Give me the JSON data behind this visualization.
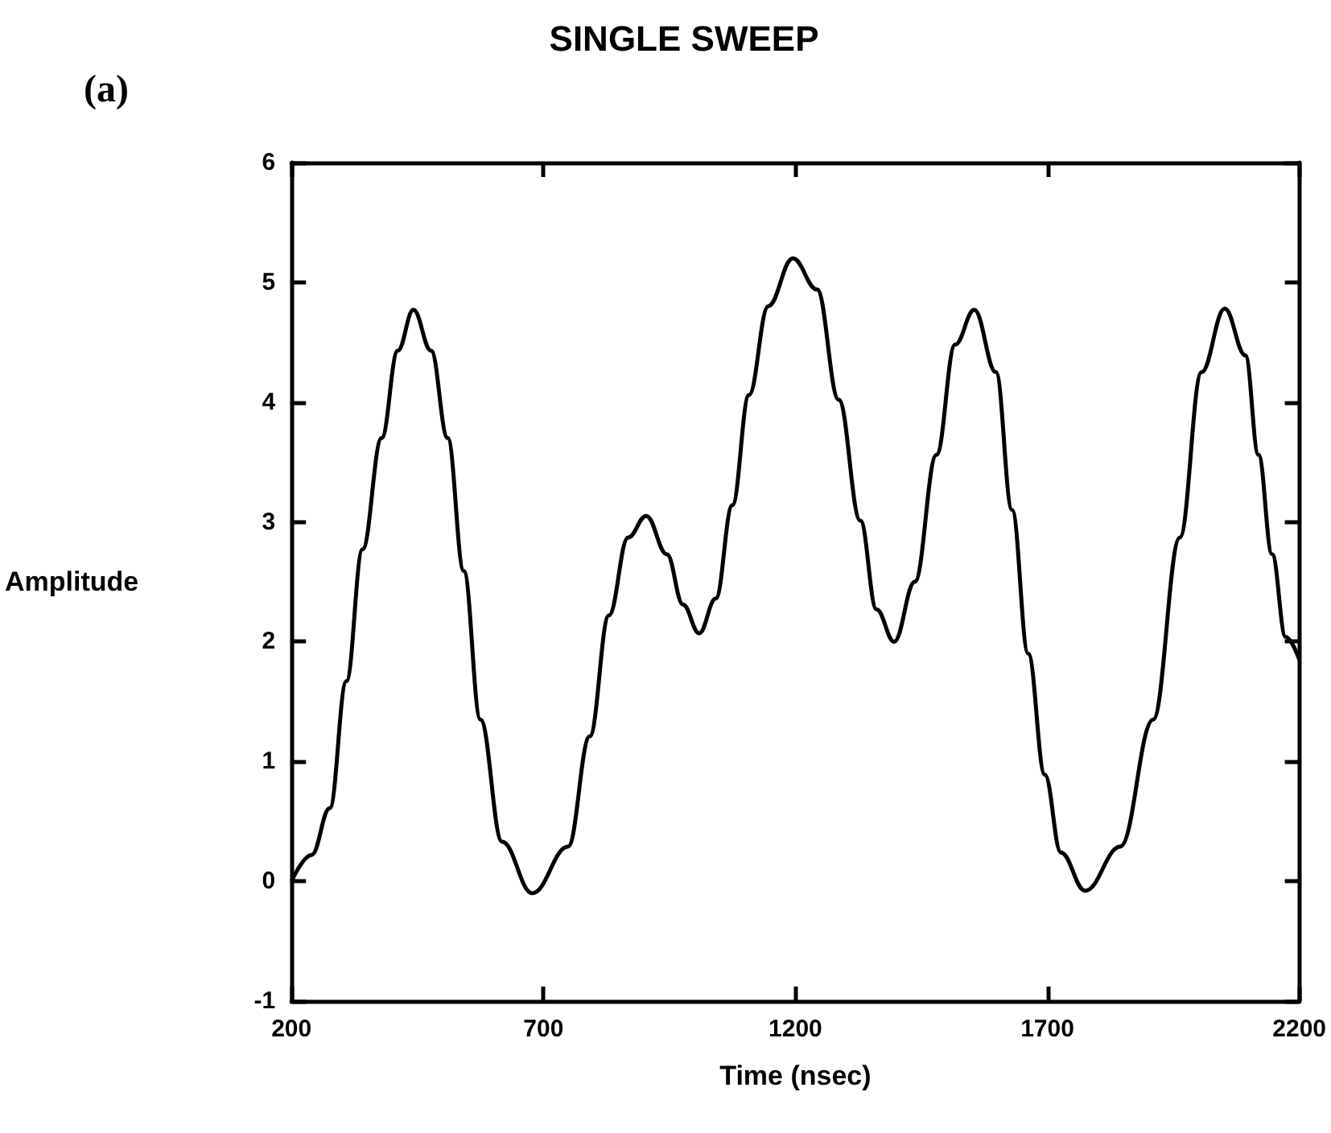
{
  "chart_data": {
    "type": "line",
    "title": "SINGLE SWEEP",
    "xlabel": "Time (nsec)",
    "ylabel": "Amplitude",
    "annotations": [
      "(a)"
    ],
    "x": [
      200,
      240,
      276,
      309,
      341,
      379,
      411,
      442,
      477,
      510,
      542,
      575,
      618,
      678,
      749,
      792,
      830,
      868,
      904,
      945,
      977,
      1009,
      1042,
      1075,
      1108,
      1146,
      1195,
      1243,
      1286,
      1329,
      1361,
      1396,
      1437,
      1480,
      1517,
      1555,
      1598,
      1630,
      1662,
      1695,
      1727,
      1775,
      1845,
      1910,
      1963,
      2006,
      2052,
      2093,
      2119,
      2146,
      2173,
      2200
    ],
    "series": [
      {
        "color": "#000000",
        "values": [
          0,
          0.22,
          0.61,
          1.67,
          2.77,
          3.7,
          4.43,
          4.77,
          4.43,
          3.7,
          2.59,
          1.35,
          0.33,
          -0.1,
          0.29,
          1.21,
          2.22,
          2.87,
          3.05,
          2.73,
          2.31,
          2.07,
          2.36,
          3.14,
          4.06,
          4.8,
          5.2,
          4.94,
          4.02,
          3.01,
          2.27,
          2.0,
          2.5,
          3.56,
          4.48,
          4.77,
          4.25,
          3.1,
          1.9,
          0.89,
          0.24,
          -0.08,
          0.29,
          1.35,
          2.87,
          4.25,
          4.78,
          4.39,
          3.56,
          2.73,
          2.04,
          1.85
        ]
      }
    ],
    "xlim": [
      200,
      2200
    ],
    "xticks": [
      200,
      700,
      1200,
      1700,
      2200
    ],
    "ylim": [
      -1,
      6
    ],
    "yticks": [
      -1,
      0,
      1,
      2,
      3,
      4,
      5,
      6
    ],
    "marker": "none",
    "line_style": "solid"
  }
}
